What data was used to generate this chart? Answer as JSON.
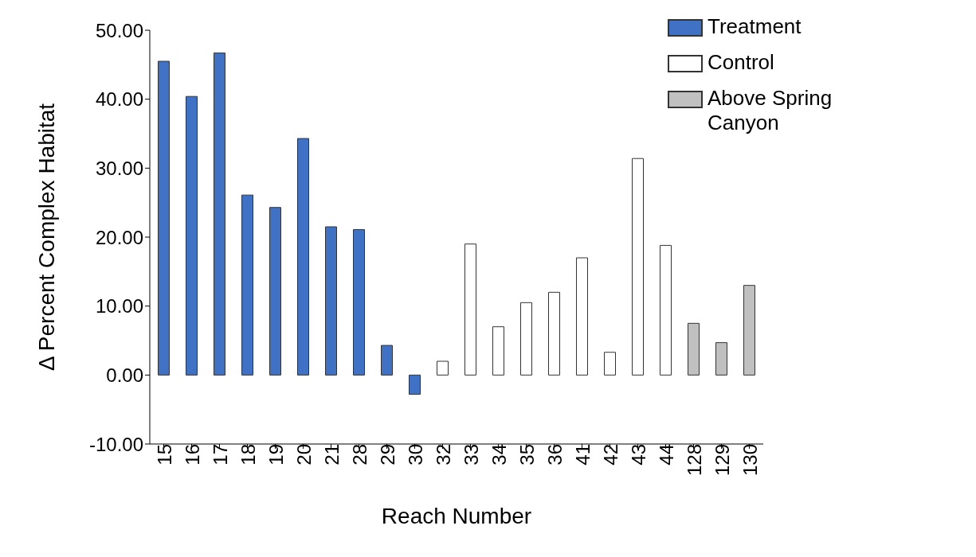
{
  "chart_data": {
    "type": "bar",
    "xlabel": "Reach Number",
    "ylabel": "Δ Percent Complex Habitat",
    "categories": [
      "15",
      "16",
      "17",
      "18",
      "19",
      "20",
      "21",
      "28",
      "29",
      "30",
      "32",
      "33",
      "34",
      "35",
      "36",
      "41",
      "42",
      "43",
      "44",
      "128",
      "129",
      "130"
    ],
    "series": [
      {
        "name": "Treatment",
        "color": "#3f72c4",
        "values": [
          45.5,
          40.4,
          46.7,
          26.1,
          24.3,
          34.3,
          21.5,
          21.1,
          4.3,
          -2.8,
          null,
          null,
          null,
          null,
          null,
          null,
          null,
          null,
          null,
          null,
          null,
          null
        ]
      },
      {
        "name": "Control",
        "color": "#ffffff",
        "values": [
          null,
          null,
          null,
          null,
          null,
          null,
          null,
          null,
          null,
          null,
          2.0,
          19.0,
          7.0,
          10.5,
          12.0,
          17.0,
          3.3,
          31.4,
          18.8,
          null,
          null,
          null
        ]
      },
      {
        "name": "Above Spring Canyon",
        "color": "#c0c0c0",
        "values": [
          null,
          null,
          null,
          null,
          null,
          null,
          null,
          null,
          null,
          null,
          null,
          null,
          null,
          null,
          null,
          null,
          null,
          null,
          null,
          7.5,
          4.7,
          13.0
        ]
      }
    ],
    "ylim": [
      -10,
      50
    ],
    "yticks": [
      {
        "value": -10,
        "label": "-10.00"
      },
      {
        "value": 0,
        "label": "0.00"
      },
      {
        "value": 10,
        "label": "10.00"
      },
      {
        "value": 20,
        "label": "20.00"
      },
      {
        "value": 30,
        "label": "30.00"
      },
      {
        "value": 40,
        "label": "40.00"
      },
      {
        "value": 50,
        "label": "50.00"
      }
    ],
    "grid": false,
    "legend": "top right"
  }
}
